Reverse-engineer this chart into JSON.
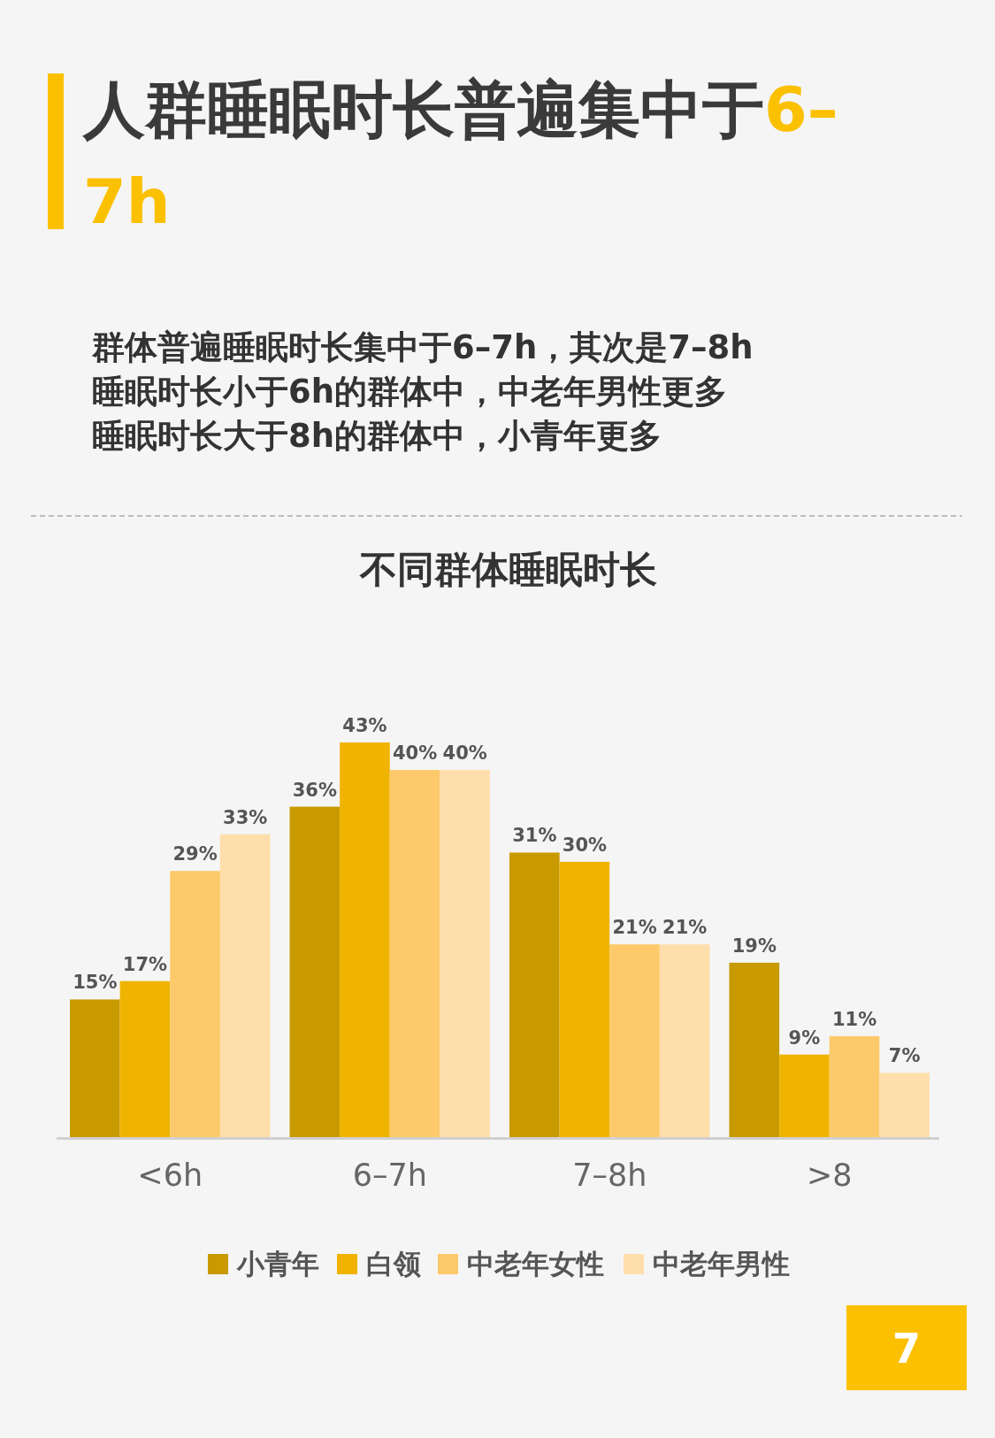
{
  "chart_data": {
    "type": "bar",
    "title": "人群睡眠时长普遍集中于6–7h",
    "subtitle": "群体普遍睡眠时长集中于6–7h，其次是7–8h",
    "annotations": [
      "睡眠时长小于6h的群体中，中老年男性更多",
      "睡眠时长大于8h的群体中，小青年更多",
      "不同群体睡眠时长",
      "7"
    ],
    "categories": [
      "<6h",
      "6–7h",
      "7–8h",
      ">8"
    ],
    "series": [
      {
        "name": "小青年",
        "color": "#c89a00",
        "values": [
          15,
          36,
          31,
          19
        ],
        "value_labels": [
          "15%",
          "36%",
          "31%",
          "19%"
        ]
      },
      {
        "name": "白领",
        "color": "#f0b400",
        "values": [
          17,
          43,
          30,
          9
        ],
        "value_labels": [
          "17%",
          "43%",
          "30%",
          "9%"
        ]
      },
      {
        "name": "中老年女性",
        "color": "#fdc96a",
        "values": [
          29,
          40,
          21,
          11
        ],
        "value_labels": [
          "29%",
          "40%",
          "21%",
          "11%"
        ]
      },
      {
        "name": "中老年男性",
        "color": "#fedeab",
        "values": [
          33,
          40,
          21,
          7
        ],
        "value_labels": [
          "33%",
          "40%",
          "21%",
          "7%"
        ]
      }
    ],
    "legend": "bottom"
  }
}
